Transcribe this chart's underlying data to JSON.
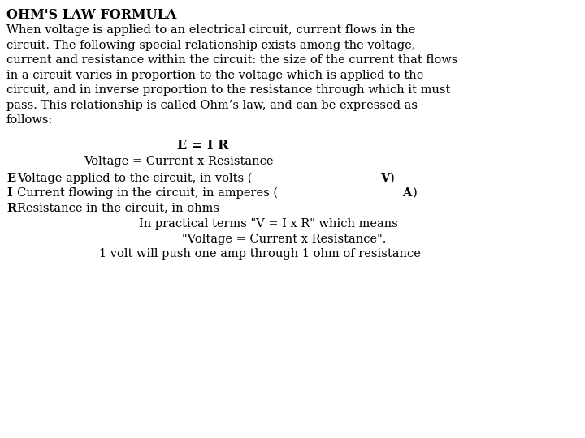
{
  "bg_color": "#ffffff",
  "text_color": "#000000",
  "title": "OHM'S LAW FORMULA",
  "title_fontsize": 11.5,
  "body_fontsize": 10.5,
  "formula_fontsize": 11.5,
  "para_lines": [
    "When voltage is applied to an electrical circuit, current flows in the",
    "circuit. The following special relationship exists among the voltage,",
    "current and resistance within the circuit: the size of the current that flows",
    "in a circuit varies in proportion to the voltage which is applied to the",
    "circuit, and in inverse proportion to the resistance through which it must",
    "pass. This relationship is called Ohm’s law, and can be expressed as",
    "follows:"
  ],
  "formula_line1": "E = I R",
  "formula_line2": "Voltage = Current x Resistance",
  "practical1": "In practical terms \"V = I x R\" which means",
  "practical2": "\"Voltage = Current x Resistance\".",
  "practical3": "1 volt will push one amp through 1 ohm of resistance"
}
